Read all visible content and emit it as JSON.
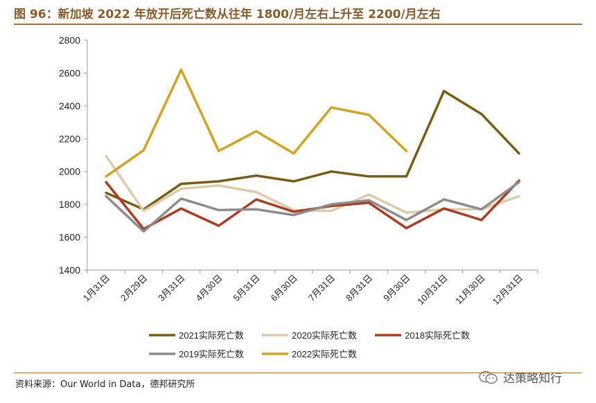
{
  "header": {
    "title": "图 96：新加坡 2022 年放开后死亡数从往年 1800/月左右上升至 2200/月左右"
  },
  "footer": {
    "source": "资料来源：Our World in Data，德邦研究所",
    "watermark": "达策略知行"
  },
  "chart_data": {
    "type": "line",
    "title": "",
    "xlabel": "",
    "ylabel": "",
    "ylim": [
      1400,
      2800
    ],
    "yticks": [
      1400,
      1600,
      1800,
      2000,
      2200,
      2400,
      2600,
      2800
    ],
    "grid": false,
    "legend_position": "bottom",
    "categories": [
      "1月31日",
      "2月29日",
      "3月31日",
      "4月30日",
      "5月31日",
      "6月30日",
      "7月31日",
      "8月31日",
      "9月30日",
      "10月31日",
      "11月30日",
      "12月31日"
    ],
    "series": [
      {
        "name": "2021实际死亡数",
        "color": "#7a5c12",
        "values": [
          1870,
          1770,
          1925,
          1940,
          1975,
          1940,
          2000,
          1970,
          1970,
          2490,
          2350,
          2110
        ]
      },
      {
        "name": "2020实际死亡数",
        "color": "#ddcba8",
        "values": [
          2095,
          1760,
          1895,
          1915,
          1875,
          1765,
          1760,
          1860,
          1750,
          1770,
          1770,
          1850
        ]
      },
      {
        "name": "2018实际死亡数",
        "color": "#b03a1e",
        "values": [
          1935,
          1650,
          1775,
          1670,
          1830,
          1755,
          1790,
          1810,
          1655,
          1775,
          1705,
          1945
        ]
      },
      {
        "name": "2019实际死亡数",
        "color": "#8c8c8c",
        "values": [
          1850,
          1635,
          1835,
          1765,
          1770,
          1735,
          1800,
          1825,
          1705,
          1830,
          1770,
          1935
        ]
      },
      {
        "name": "2022实际死亡数",
        "color": "#d4a21c",
        "values": [
          1970,
          2130,
          2620,
          2125,
          2245,
          2110,
          2390,
          2345,
          2125,
          null,
          null,
          null
        ]
      }
    ]
  }
}
